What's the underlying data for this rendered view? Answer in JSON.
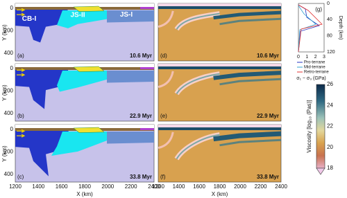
{
  "panels": [
    {
      "label": "(a)",
      "time": "10.6 Myr"
    },
    {
      "label": "(b)",
      "time": "22.9 Myr"
    },
    {
      "label": "(c)",
      "time": "33.8 Myr"
    },
    {
      "label": "(d)",
      "time": "10.6 Myr"
    },
    {
      "label": "(e)",
      "time": "22.9 Myr"
    },
    {
      "label": "(f)",
      "time": "33.8 Myr"
    }
  ],
  "terranes": [
    "CB-I",
    "JS-II",
    "JS-I"
  ],
  "y_axis": {
    "title": "Y (km)",
    "ticks": [
      "0",
      "200",
      "400"
    ]
  },
  "x_axis": {
    "title": "X (km)",
    "ticks": [
      "1200",
      "1400",
      "1600",
      "1800",
      "2000",
      "2200",
      "2400"
    ]
  },
  "stress_panel": {
    "label": "(g)",
    "x_title": "σ₁ − σ₃ (GPa)",
    "y_title": "Depth (km)",
    "x_ticks": [
      "0",
      "1",
      "2",
      "3"
    ],
    "y_ticks": [
      "0",
      "40",
      "80",
      "120"
    ],
    "legend": [
      "Pro-terrane",
      "Mid-terrane",
      "Retro-terrane"
    ]
  },
  "colorbar": {
    "title": "Viscosity [log₁₀ (Pas)]",
    "ticks": [
      "26",
      "24",
      "22",
      "20",
      "18"
    ]
  }
}
